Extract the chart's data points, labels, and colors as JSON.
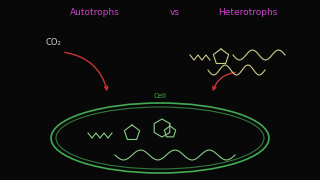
{
  "bg_color": "#080808",
  "autotrophs_label": "Autotrophs",
  "vs_label": "vs",
  "heterotrophs_label": "Heterotrophs",
  "autotrophs_color": "#cc44cc",
  "vs_color": "#cc44cc",
  "heterotrophs_color": "#cc44cc",
  "co2_label": "CO₂",
  "co2_color": "#cccccc",
  "cell_label": "Cell",
  "cell_label_color": "#44aa55",
  "cell_ellipse_color": "#44aa55",
  "arrow_color": "#cc3333",
  "molecule_color": "#cccc88",
  "molecule_color2": "#88cc88"
}
